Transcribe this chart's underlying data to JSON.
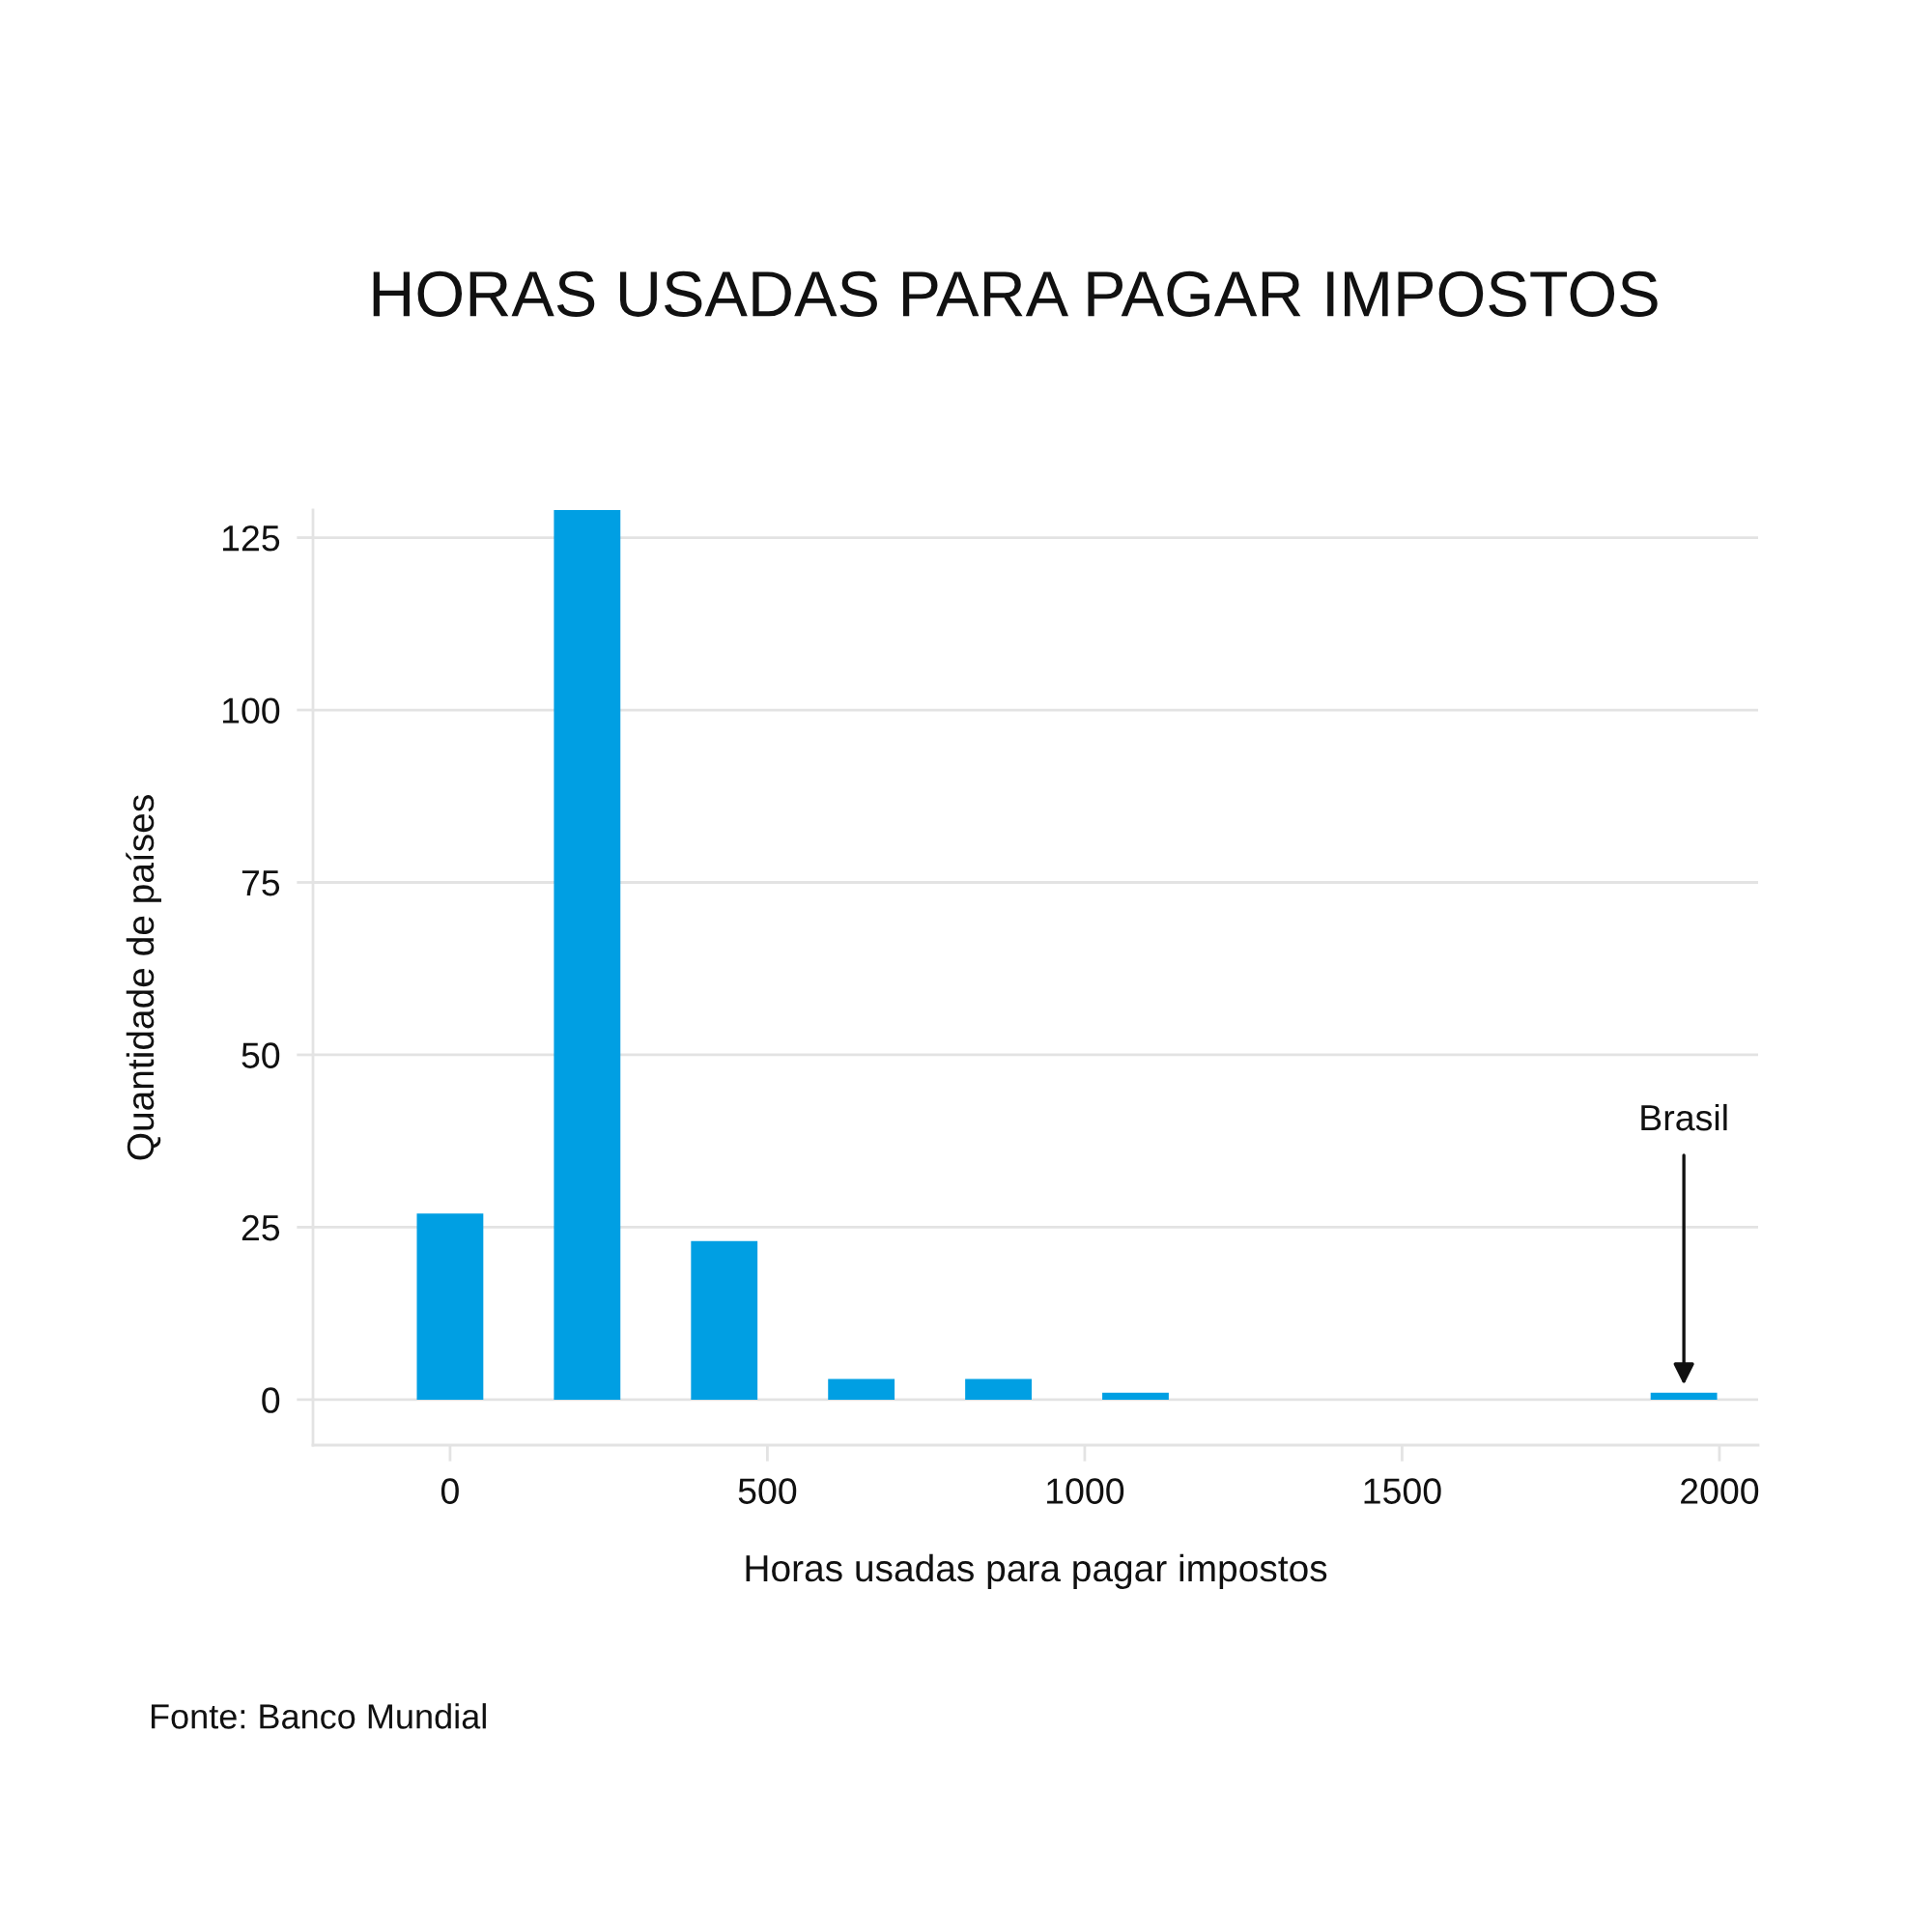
{
  "chart_data": {
    "type": "bar",
    "title": "HORAS USADAS PARA PAGAR IMPOSTOS",
    "xlabel": "Horas usadas para pagar impostos",
    "ylabel": "Quantidade de países",
    "x": [
      0,
      216,
      432,
      648,
      864,
      1080,
      1944
    ],
    "values": [
      27,
      129,
      23,
      3,
      3,
      1,
      1
    ],
    "color": "#009fe3",
    "xlim": [
      -216,
      2061
    ],
    "ylim": [
      -6.6,
      129
    ],
    "xticks": [
      0,
      500,
      1000,
      1500,
      2000
    ],
    "yticks": [
      0,
      25,
      50,
      75,
      100,
      125
    ],
    "grid": "y",
    "annotations": [
      {
        "text": "Brasil",
        "x": 1944,
        "y": 1
      },
      "Fonte: Banco Mundial"
    ]
  }
}
